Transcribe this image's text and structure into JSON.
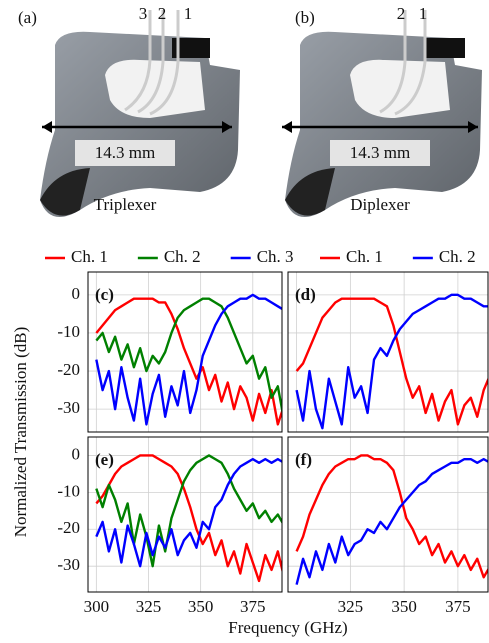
{
  "photos": {
    "a": {
      "label": "(a)",
      "ports": [
        "3",
        "2",
        "1"
      ],
      "dimension": "14.3 mm",
      "caption": "Triplexer"
    },
    "b": {
      "label": "(b)",
      "ports": [
        "2",
        "1"
      ],
      "dimension": "14.3 mm",
      "caption": "Diplexer"
    }
  },
  "chart_data": [
    {
      "type": "line",
      "label": "(c)",
      "ylabel": "Normalized Transmission (dB)",
      "x": [
        300,
        303,
        306,
        309,
        312,
        315,
        318,
        321,
        324,
        327,
        330,
        333,
        336,
        339,
        342,
        345,
        348,
        351,
        354,
        357,
        360,
        363,
        366,
        369,
        372,
        375,
        378,
        381,
        384,
        387,
        390
      ],
      "xlim": [
        296,
        389
      ],
      "ylim": [
        -36,
        6
      ],
      "yticks": [
        0,
        -10,
        -20,
        -30
      ],
      "xticks": [
        300,
        325,
        350,
        375
      ],
      "show_ytick_labels": true,
      "show_xtick_labels": false,
      "grid": true,
      "series": [
        {
          "name": "Ch. 1",
          "color": "#ff0000",
          "values": [
            -10,
            -8,
            -6,
            -4,
            -3,
            -2,
            -1,
            -1,
            -1,
            -1,
            -2,
            -2,
            -5,
            -9,
            -14,
            -18,
            -22,
            -19,
            -25,
            -21,
            -28,
            -23,
            -30,
            -24,
            -27,
            -33,
            -26,
            -31,
            -25,
            -34,
            -29
          ]
        },
        {
          "name": "Ch. 2",
          "color": "#008000",
          "values": [
            -12,
            -10,
            -15,
            -11,
            -17,
            -13,
            -19,
            -14,
            -20,
            -16,
            -18,
            -15,
            -10,
            -6,
            -4,
            -3,
            -2,
            -1,
            -1,
            -2,
            -3,
            -6,
            -10,
            -14,
            -18,
            -16,
            -22,
            -19,
            -27,
            -24,
            -33
          ]
        },
        {
          "name": "Ch. 3",
          "color": "#0000ff",
          "values": [
            -17,
            -25,
            -20,
            -30,
            -19,
            -27,
            -33,
            -22,
            -34,
            -26,
            -21,
            -32,
            -24,
            -29,
            -20,
            -31,
            -25,
            -16,
            -12,
            -8,
            -5,
            -3,
            -2,
            -1,
            -1,
            0,
            -1,
            -1,
            -2,
            -3,
            -4
          ]
        }
      ]
    },
    {
      "type": "line",
      "label": "(d)",
      "x": [
        300,
        303,
        306,
        309,
        312,
        315,
        318,
        321,
        324,
        327,
        330,
        333,
        336,
        339,
        342,
        345,
        348,
        351,
        354,
        357,
        360,
        363,
        366,
        369,
        372,
        375,
        378,
        381,
        384,
        387,
        390
      ],
      "xlim": [
        296,
        389
      ],
      "ylim": [
        -36,
        6
      ],
      "yticks": [
        0,
        -10,
        -20,
        -30
      ],
      "xticks": [
        300,
        325,
        350,
        375
      ],
      "show_ytick_labels": false,
      "show_xtick_labels": false,
      "grid": true,
      "series": [
        {
          "name": "Ch. 1",
          "color": "#ff0000",
          "values": [
            -20,
            -18,
            -14,
            -10,
            -6,
            -4,
            -2,
            -1,
            -1,
            -1,
            -1,
            -1,
            -1,
            -2,
            -3,
            -8,
            -15,
            -22,
            -27,
            -24,
            -31,
            -26,
            -33,
            -28,
            -25,
            -34,
            -29,
            -27,
            -32,
            -25,
            -21
          ]
        },
        {
          "name": "Ch. 2",
          "color": "#0000ff",
          "values": [
            -25,
            -33,
            -20,
            -30,
            -35,
            -22,
            -28,
            -34,
            -19,
            -27,
            -24,
            -31,
            -17,
            -14,
            -16,
            -12,
            -9,
            -7,
            -5,
            -4,
            -3,
            -2,
            -1,
            -1,
            0,
            0,
            -1,
            -1,
            -2,
            -3,
            -3
          ]
        }
      ]
    },
    {
      "type": "line",
      "label": "(e)",
      "xlabel": "Frequency (GHz)",
      "x": [
        300,
        303,
        306,
        309,
        312,
        315,
        318,
        321,
        324,
        327,
        330,
        333,
        336,
        339,
        342,
        345,
        348,
        351,
        354,
        357,
        360,
        363,
        366,
        369,
        372,
        375,
        378,
        381,
        384,
        387,
        390
      ],
      "xlim": [
        296,
        389
      ],
      "ylim": [
        -37,
        5
      ],
      "yticks": [
        0,
        -10,
        -20,
        -30
      ],
      "xticks": [
        300,
        325,
        350,
        375
      ],
      "show_ytick_labels": true,
      "show_xtick_labels": true,
      "grid": true,
      "series": [
        {
          "color": "#ff0000",
          "values": [
            -13,
            -11,
            -8,
            -5,
            -3,
            -2,
            -1,
            0,
            0,
            0,
            -1,
            -2,
            -3,
            -5,
            -9,
            -14,
            -20,
            -24,
            -21,
            -27,
            -23,
            -30,
            -26,
            -32,
            -24,
            -29,
            -34,
            -27,
            -31,
            -26,
            -33
          ]
        },
        {
          "color": "#008000",
          "values": [
            -9,
            -14,
            -8,
            -12,
            -18,
            -13,
            -24,
            -16,
            -22,
            -30,
            -19,
            -26,
            -17,
            -12,
            -7,
            -4,
            -2,
            -1,
            0,
            -1,
            -2,
            -5,
            -9,
            -12,
            -15,
            -13,
            -17,
            -15,
            -18,
            -16,
            -19
          ]
        },
        {
          "color": "#0000ff",
          "values": [
            -22,
            -18,
            -26,
            -20,
            -29,
            -19,
            -24,
            -30,
            -21,
            -27,
            -22,
            -25,
            -20,
            -27,
            -23,
            -21,
            -25,
            -18,
            -20,
            -14,
            -12,
            -8,
            -5,
            -3,
            -2,
            -1,
            -2,
            -1,
            -2,
            -1,
            -2
          ]
        }
      ]
    },
    {
      "type": "line",
      "label": "(f)",
      "x": [
        300,
        303,
        306,
        309,
        312,
        315,
        318,
        321,
        324,
        327,
        330,
        333,
        336,
        339,
        342,
        345,
        348,
        351,
        354,
        357,
        360,
        363,
        366,
        369,
        372,
        375,
        378,
        381,
        384,
        387,
        390
      ],
      "xlim": [
        296,
        389
      ],
      "ylim": [
        -37,
        5
      ],
      "yticks": [
        0,
        -10,
        -20,
        -30
      ],
      "xticks": [
        325,
        350,
        375
      ],
      "show_ytick_labels": false,
      "show_xtick_labels": true,
      "grid": true,
      "series": [
        {
          "color": "#ff0000",
          "values": [
            -26,
            -22,
            -16,
            -12,
            -8,
            -5,
            -3,
            -2,
            -1,
            -1,
            0,
            0,
            -1,
            -1,
            -2,
            -4,
            -10,
            -17,
            -20,
            -24,
            -22,
            -27,
            -24,
            -29,
            -26,
            -30,
            -27,
            -31,
            -28,
            -33,
            -30
          ]
        },
        {
          "color": "#0000ff",
          "values": [
            -35,
            -28,
            -33,
            -26,
            -31,
            -24,
            -29,
            -22,
            -27,
            -24,
            -23,
            -20,
            -21,
            -18,
            -20,
            -17,
            -14,
            -12,
            -10,
            -8,
            -7,
            -5,
            -4,
            -3,
            -2,
            -2,
            -1,
            -1,
            -2,
            -1,
            -2
          ]
        }
      ]
    }
  ]
}
